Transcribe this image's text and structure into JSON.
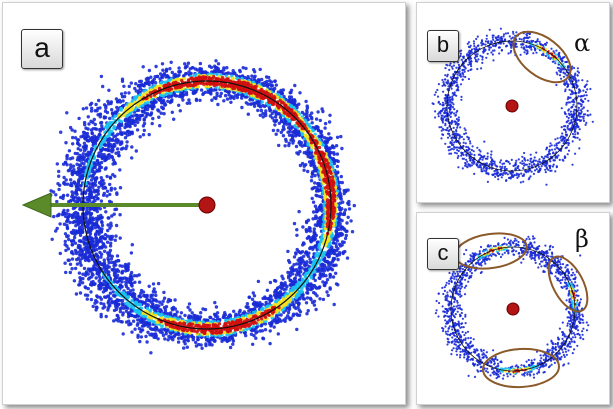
{
  "panels": {
    "a": {
      "label": "a"
    },
    "b": {
      "label": "b",
      "region_label": "α"
    },
    "c": {
      "label": "c",
      "region_label": "β"
    }
  },
  "colors": {
    "background": "#ffffff",
    "scatter_low": "#1a2bd6",
    "scatter_mid": "#19c3f0",
    "scatter_high": "#f5e21c",
    "scatter_peak": "#d01010",
    "center_dot": "#b31414",
    "arrow": "#5a8a2a",
    "ellipse": "#8b5a2b",
    "circle_fit": "#111111"
  },
  "icons": {
    "center": "red-dot-icon",
    "direction": "green-arrow-icon"
  }
}
